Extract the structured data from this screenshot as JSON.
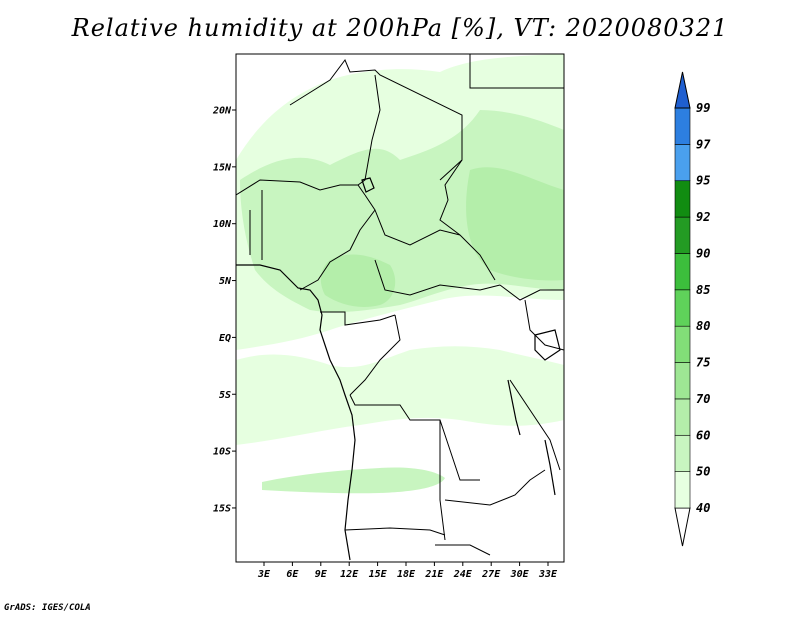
{
  "title": "Relative humidity at 200hPa [%], VT: 2020080321",
  "footer": "GrADS: IGES/COLA",
  "map": {
    "lat_ticks": [
      "20N",
      "15N",
      "10N",
      "5N",
      "EQ",
      "5S",
      "10S",
      "15S"
    ],
    "lon_ticks": [
      "3E",
      "6E",
      "9E",
      "12E",
      "15E",
      "18E",
      "21E",
      "24E",
      "27E",
      "30E",
      "33E"
    ],
    "lat_range": [
      -20,
      25
    ],
    "lon_range": [
      0,
      35
    ]
  },
  "colorbar": {
    "labels": [
      "40",
      "50",
      "60",
      "70",
      "75",
      "80",
      "85",
      "90",
      "92",
      "95",
      "97",
      "99"
    ],
    "colors": [
      "#ffffff",
      "#e6ffe0",
      "#c8f5c0",
      "#b4eeaa",
      "#9ee694",
      "#82de78",
      "#5fd25a",
      "#3cbe3c",
      "#239b23",
      "#118c11",
      "#4aa0ee",
      "#2d7fe0",
      "#1f5fd0"
    ]
  },
  "colors": {
    "land_light": "#e6ffe0",
    "land_mid": "#c8f5c0",
    "land_dark": "#b4eeaa"
  }
}
